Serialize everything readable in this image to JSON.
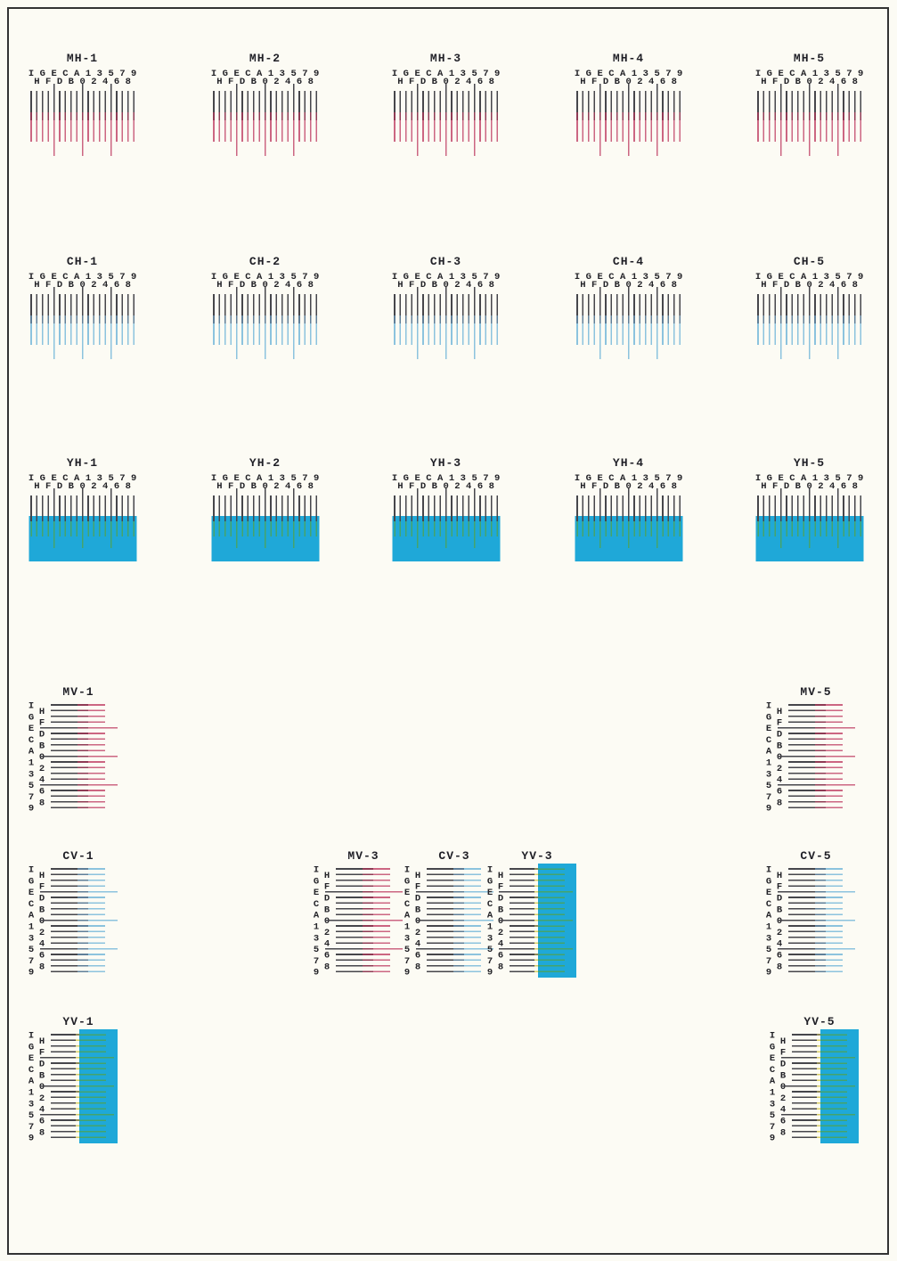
{
  "page": {
    "background": "#fcfbf4",
    "frame_color": "#333333",
    "description": "Color registration correction charts"
  },
  "colors": {
    "line_black": "#46464b",
    "magenta": "#cc6682",
    "magenta_overlap": "#8f3a54",
    "cyan": "#8cc3de",
    "cyan_overlap": "#5f7f99",
    "cyan_block": "#1fa8d8",
    "yellow_on_block": "#45a46b",
    "yellow_nub": "#d8cf66",
    "label_text": "#232328"
  },
  "pattern_labels": {
    "outer": "IGECA13579",
    "inner": "HFDB02468"
  },
  "long_indices": [
    4,
    9,
    14
  ],
  "horizontal_rows": [
    {
      "name": "MH",
      "ink": "magenta",
      "charts": [
        "MH-1",
        "MH-2",
        "MH-3",
        "MH-4",
        "MH-5"
      ]
    },
    {
      "name": "CH",
      "ink": "cyan",
      "charts": [
        "CH-1",
        "CH-2",
        "CH-3",
        "CH-4",
        "CH-5"
      ]
    },
    {
      "name": "YH",
      "ink": "yellow",
      "charts": [
        "YH-1",
        "YH-2",
        "YH-3",
        "YH-4",
        "YH-5"
      ]
    }
  ],
  "vertical_charts": [
    {
      "title": "MV-1",
      "ink": "magenta"
    },
    {
      "title": "MV-5",
      "ink": "magenta"
    },
    {
      "title": "CV-1",
      "ink": "cyan"
    },
    {
      "title": "MV-3",
      "ink": "magenta"
    },
    {
      "title": "CV-3",
      "ink": "cyan"
    },
    {
      "title": "YV-3",
      "ink": "yellow"
    },
    {
      "title": "CV-5",
      "ink": "cyan"
    },
    {
      "title": "YV-1",
      "ink": "yellow"
    },
    {
      "title": "YV-5",
      "ink": "yellow"
    }
  ]
}
